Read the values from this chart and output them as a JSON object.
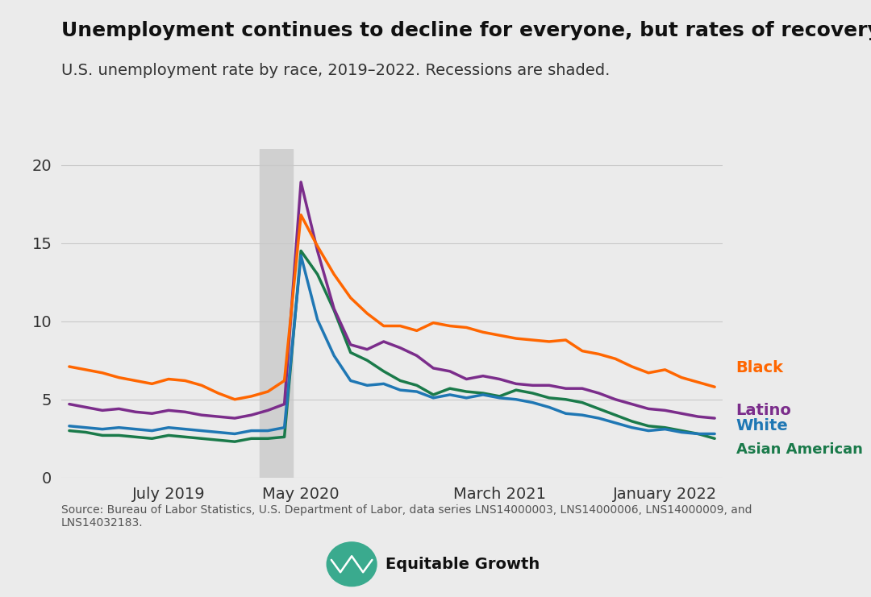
{
  "title": "Unemployment continues to decline for everyone, but rates of recovery differ",
  "subtitle": "U.S. unemployment rate by race, 2019–2022. Recessions are shaded.",
  "source_text": "Source: Bureau of Labor Statistics, U.S. Department of Labor, data series LNS14000003, LNS14000006, LNS14000009, and\nLNS14032183.",
  "background_color": "#ebebeb",
  "plot_bg_color": "#e8e8e8",
  "recession_color": "#d0d0d0",
  "recession_start": 12,
  "recession_end": 14,
  "ylim": [
    0,
    21
  ],
  "yticks": [
    0,
    5,
    10,
    15,
    20
  ],
  "xtick_labels": [
    "July 2019",
    "May 2020",
    "March 2021",
    "January 2022"
  ],
  "xtick_positions": [
    6,
    14,
    26,
    36
  ],
  "series": {
    "Black": {
      "color": "#ff6600",
      "data": [
        7.1,
        6.9,
        6.7,
        6.4,
        6.2,
        6.0,
        6.3,
        6.2,
        5.9,
        5.4,
        5.0,
        5.2,
        5.5,
        6.2,
        16.8,
        14.8,
        13.0,
        11.5,
        10.5,
        9.7,
        9.7,
        9.4,
        9.9,
        9.7,
        9.6,
        9.3,
        9.1,
        8.9,
        8.8,
        8.7,
        8.8,
        8.1,
        7.9,
        7.6,
        7.1,
        6.7,
        6.9,
        6.4,
        6.1,
        5.8
      ]
    },
    "Latino": {
      "color": "#7b2d8b",
      "data": [
        4.7,
        4.5,
        4.3,
        4.4,
        4.2,
        4.1,
        4.3,
        4.2,
        4.0,
        3.9,
        3.8,
        4.0,
        4.3,
        4.7,
        18.9,
        14.5,
        10.8,
        8.5,
        8.2,
        8.7,
        8.3,
        7.8,
        7.0,
        6.8,
        6.3,
        6.5,
        6.3,
        6.0,
        5.9,
        5.9,
        5.7,
        5.7,
        5.4,
        5.0,
        4.7,
        4.4,
        4.3,
        4.1,
        3.9,
        3.8
      ]
    },
    "White": {
      "color": "#1f77b4",
      "data": [
        3.3,
        3.2,
        3.1,
        3.2,
        3.1,
        3.0,
        3.2,
        3.1,
        3.0,
        2.9,
        2.8,
        3.0,
        3.0,
        3.2,
        14.2,
        10.1,
        7.8,
        6.2,
        5.9,
        6.0,
        5.6,
        5.5,
        5.1,
        5.3,
        5.1,
        5.3,
        5.1,
        5.0,
        4.8,
        4.5,
        4.1,
        4.0,
        3.8,
        3.5,
        3.2,
        3.0,
        3.1,
        2.9,
        2.8,
        2.8
      ]
    },
    "Asian American": {
      "color": "#1a7a4a",
      "data": [
        3.0,
        2.9,
        2.7,
        2.7,
        2.6,
        2.5,
        2.7,
        2.6,
        2.5,
        2.4,
        2.3,
        2.5,
        2.5,
        2.6,
        14.5,
        13.0,
        10.7,
        8.0,
        7.5,
        6.8,
        6.2,
        5.9,
        5.3,
        5.7,
        5.5,
        5.4,
        5.2,
        5.6,
        5.4,
        5.1,
        5.0,
        4.8,
        4.4,
        4.0,
        3.6,
        3.3,
        3.2,
        3.0,
        2.8,
        2.5
      ]
    }
  },
  "legend_labels": [
    "Black",
    "Latino",
    "White",
    "Asian American"
  ],
  "line_width": 2.5,
  "logo_color": "#3aaa8e",
  "logo_text": "Equitable Growth"
}
